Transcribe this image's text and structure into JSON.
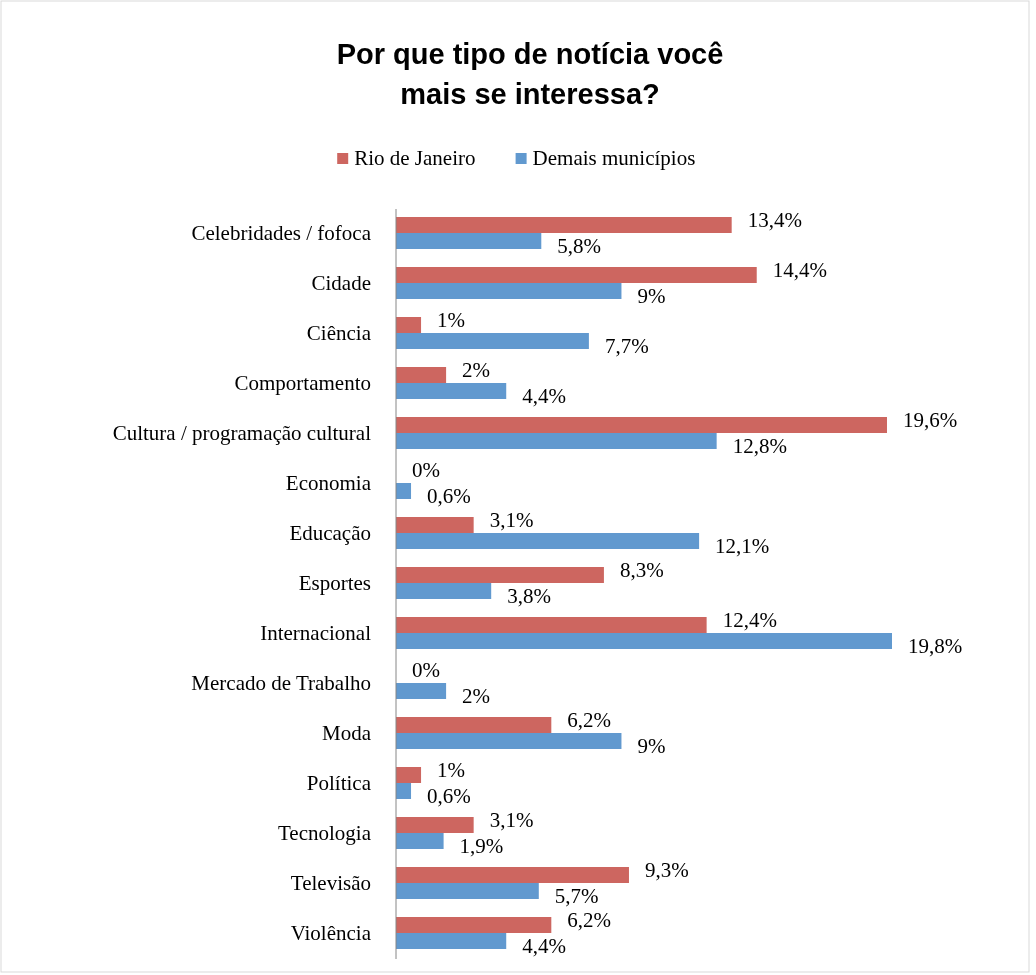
{
  "chart_data": {
    "type": "bar",
    "orientation": "horizontal",
    "title": "Por que tipo de notícia você\nmais se interessa?",
    "legend": "top",
    "data_labels": true,
    "categories": [
      "Celebridades / fofoca",
      "Cidade",
      "Ciência",
      "Comportamento",
      "Cultura / programação cultural",
      "Economia",
      "Educação",
      "Esportes",
      "Internacional",
      "Mercado de Trabalho",
      "Moda",
      "Política",
      "Tecnologia",
      "Televisão",
      "Violência"
    ],
    "series": [
      {
        "name": "Rio de Janeiro",
        "color": "#cd6660",
        "values": [
          13.4,
          14.4,
          1,
          2,
          19.6,
          0,
          3.1,
          8.3,
          12.4,
          0,
          6.2,
          1,
          3.1,
          9.3,
          6.2
        ],
        "value_labels": [
          "13,4%",
          "14,4%",
          "1%",
          "2%",
          "19,6%",
          "0%",
          "3,1%",
          "8,3%",
          "12,4%",
          "0%",
          "6,2%",
          "1%",
          "3,1%",
          "9,3%",
          "6,2%"
        ]
      },
      {
        "name": "Demais municípios",
        "color": "#6199cf",
        "values": [
          5.8,
          9,
          7.7,
          4.4,
          12.8,
          0.6,
          12.1,
          3.8,
          19.8,
          2,
          9,
          0.6,
          1.9,
          5.7,
          4.4
        ],
        "value_labels": [
          "5,8%",
          "9%",
          "7,7%",
          "4,4%",
          "12,8%",
          "0,6%",
          "12,1%",
          "3,8%",
          "19,8%",
          "2%",
          "9%",
          "0,6%",
          "1,9%",
          "5,7%",
          "4,4%"
        ]
      }
    ]
  }
}
